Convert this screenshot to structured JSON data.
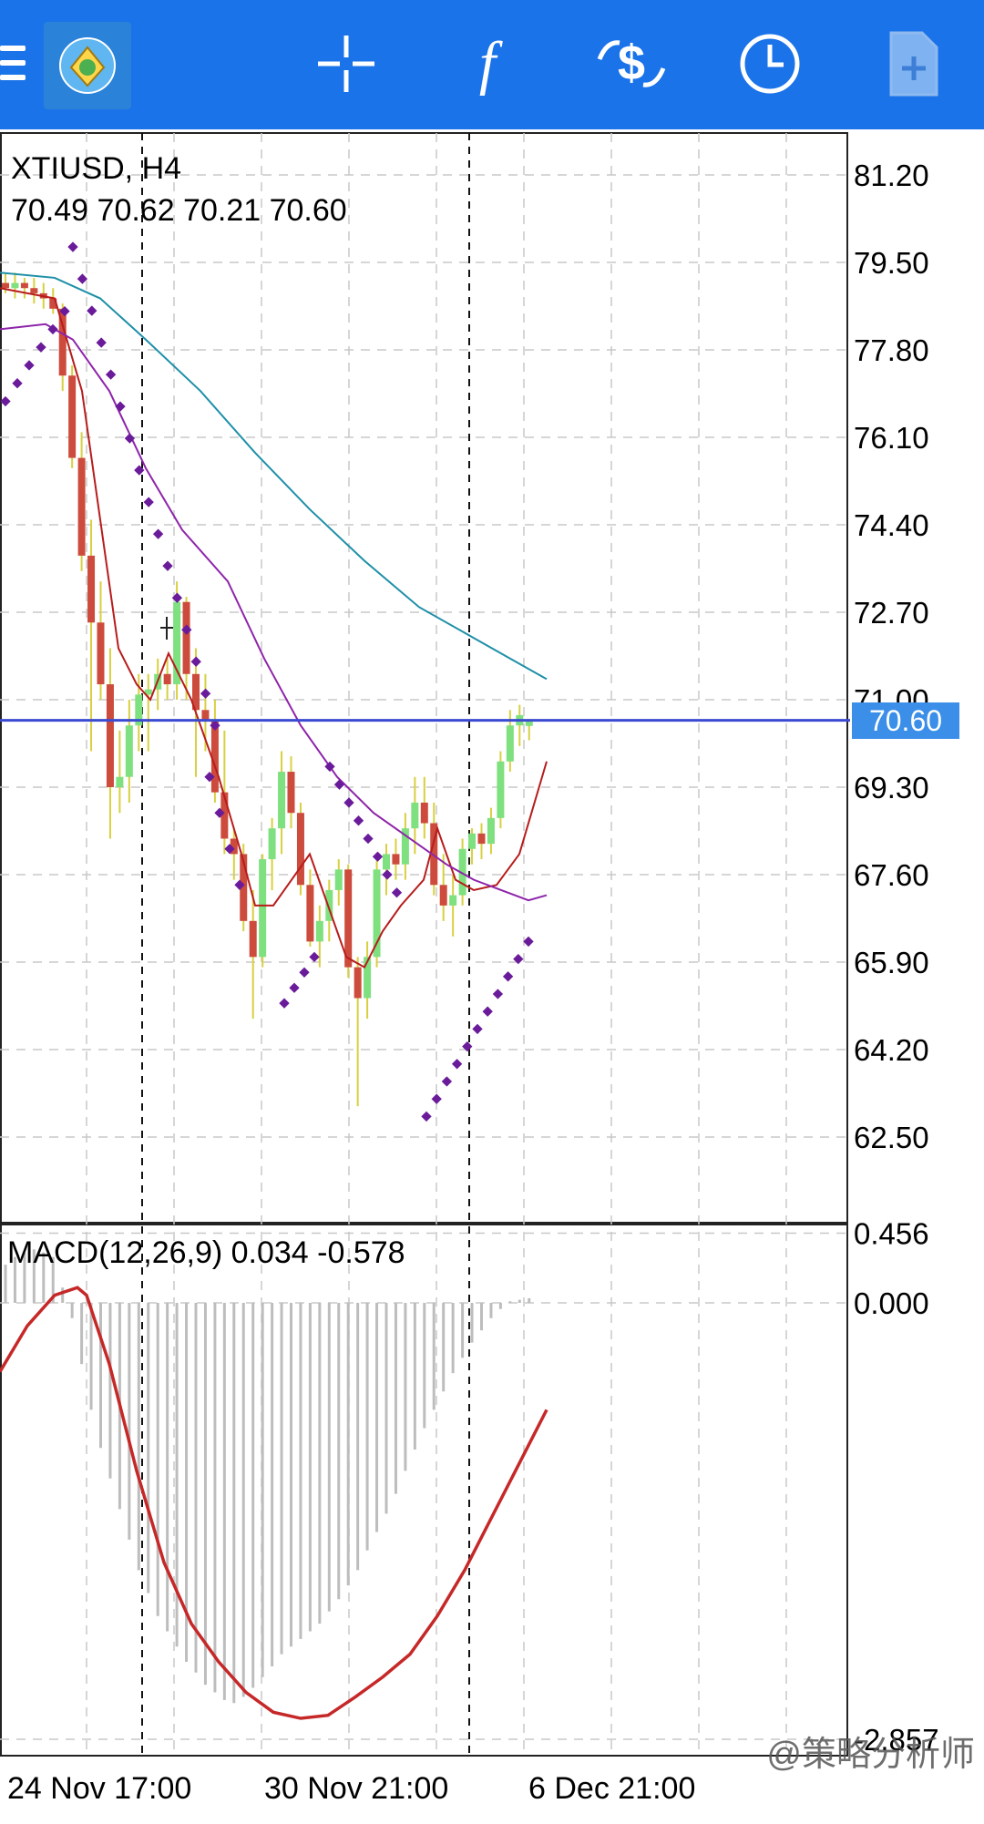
{
  "toolbar": {
    "icons": [
      "menu-icon",
      "app-logo",
      "crosshair-icon",
      "function-icon",
      "trade-icon",
      "clock-icon",
      "new-order-icon"
    ],
    "function_glyph": "f"
  },
  "chart": {
    "symbol_label": "XTIUSD, H4",
    "ohlc_label": "70.49 70.62 70.21 70.60",
    "current_price": "70.60",
    "price_axis": [
      "81.20",
      "79.50",
      "77.80",
      "76.10",
      "74.40",
      "72.70",
      "71.00",
      "69.30",
      "67.60",
      "65.90",
      "64.20",
      "62.50"
    ],
    "macd_label": "MACD(12,26,9) 0.034 -0.578",
    "macd_axis": [
      "0.456",
      "0.000",
      "-2.857"
    ],
    "time_axis": [
      "24 Nov 17:00",
      "30 Nov 21:00",
      "6 Dec 21:00"
    ],
    "colors": {
      "up": "#7fe07f",
      "down": "#cc4b3c",
      "sar": "#6a1b9a",
      "ma_fast": "#b71c1c",
      "ma_mid": "#8e24aa",
      "ma_slow": "#1e8fa8",
      "price_line": "#3b4bd1",
      "macd_signal": "#c62828"
    }
  },
  "watermark": "@策略分析师"
}
